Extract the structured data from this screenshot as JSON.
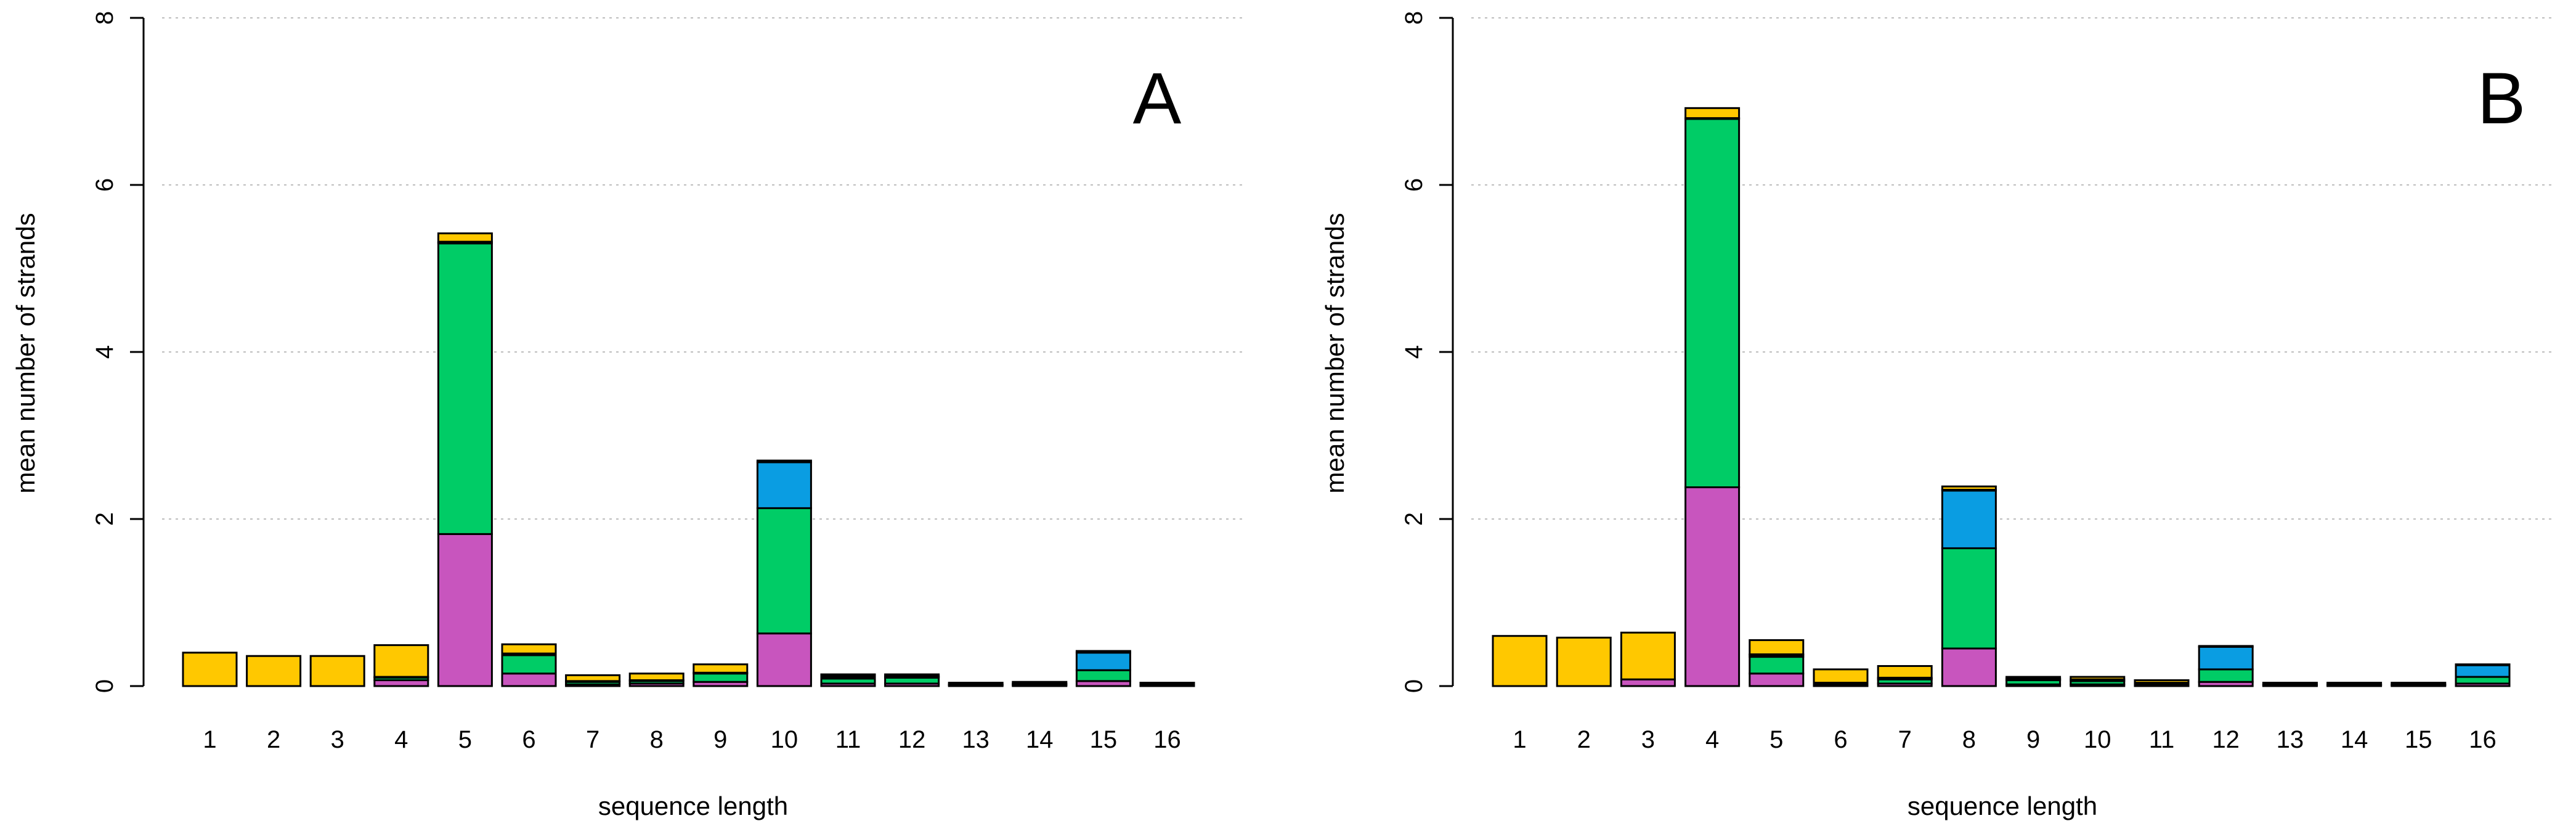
{
  "colors": {
    "pink": "#C855BE",
    "green": "#00CC66",
    "blue": "#0A9DE2",
    "yellow": "#FFC800",
    "black": "#1A1A1A"
  },
  "chart_data": [
    {
      "type": "bar",
      "stacked": true,
      "panel_label": "A",
      "xlabel": "sequence length",
      "ylabel": "mean number of strands",
      "ylim": [
        0,
        8
      ],
      "yticks": [
        "0",
        "2",
        "4",
        "6",
        "8"
      ],
      "grid": "horizontal dotted",
      "categories": [
        "1",
        "2",
        "3",
        "4",
        "5",
        "6",
        "7",
        "8",
        "9",
        "10",
        "11",
        "12",
        "13",
        "14",
        "15",
        "16"
      ],
      "series": [
        {
          "name": "pink",
          "color": "#C855BE",
          "values": [
            0,
            0,
            0,
            0.07,
            1.82,
            0.15,
            0.02,
            0.03,
            0.05,
            0.63,
            0.03,
            0.03,
            0.01,
            0.01,
            0.06,
            0.01
          ]
        },
        {
          "name": "green",
          "color": "#00CC66",
          "values": [
            0,
            0,
            0,
            0.03,
            3.48,
            0.22,
            0.03,
            0.03,
            0.1,
            1.5,
            0.06,
            0.07,
            0.01,
            0.01,
            0.13,
            0.01
          ]
        },
        {
          "name": "blue",
          "color": "#0A9DE2",
          "values": [
            0,
            0,
            0,
            0,
            0.01,
            0.01,
            0,
            0,
            0,
            0.55,
            0.02,
            0.01,
            0,
            0,
            0.21,
            0
          ]
        },
        {
          "name": "black",
          "color": "#1A1A1A",
          "values": [
            0,
            0,
            0,
            0.01,
            0.01,
            0.01,
            0.01,
            0.01,
            0.01,
            0.02,
            0.01,
            0.01,
            0.02,
            0.01,
            0.02,
            0.02
          ]
        },
        {
          "name": "yellow",
          "color": "#FFC800",
          "values": [
            0.4,
            0.36,
            0.36,
            0.38,
            0.1,
            0.11,
            0.07,
            0.08,
            0.1,
            0,
            0.02,
            0.02,
            0,
            0.02,
            0,
            0
          ]
        }
      ]
    },
    {
      "type": "bar",
      "stacked": true,
      "panel_label": "B",
      "xlabel": "sequence length",
      "ylabel": "mean number of strands",
      "ylim": [
        0,
        8
      ],
      "yticks": [
        "0",
        "2",
        "4",
        "6",
        "8"
      ],
      "grid": "horizontal dotted",
      "categories": [
        "1",
        "2",
        "3",
        "4",
        "5",
        "6",
        "7",
        "8",
        "9",
        "10",
        "11",
        "12",
        "13",
        "14",
        "15",
        "16"
      ],
      "series": [
        {
          "name": "pink",
          "color": "#C855BE",
          "values": [
            0,
            0,
            0.08,
            2.38,
            0.15,
            0.02,
            0.03,
            0.45,
            0.02,
            0.02,
            0.02,
            0.05,
            0.01,
            0.01,
            0.01,
            0.03
          ]
        },
        {
          "name": "green",
          "color": "#00CC66",
          "values": [
            0,
            0,
            0,
            4.41,
            0.2,
            0.01,
            0.05,
            1.2,
            0.05,
            0.04,
            0.01,
            0.15,
            0.01,
            0.01,
            0.01,
            0.08
          ]
        },
        {
          "name": "blue",
          "color": "#0A9DE2",
          "values": [
            0,
            0,
            0,
            0,
            0.02,
            0,
            0.01,
            0.69,
            0.01,
            0,
            0,
            0.27,
            0,
            0,
            0,
            0.14
          ]
        },
        {
          "name": "black",
          "color": "#1A1A1A",
          "values": [
            0,
            0,
            0,
            0.01,
            0.01,
            0.01,
            0.01,
            0.01,
            0.01,
            0.02,
            0.01,
            0.01,
            0.02,
            0.02,
            0.02,
            0.01
          ]
        },
        {
          "name": "yellow",
          "color": "#FFC800",
          "values": [
            0.6,
            0.58,
            0.56,
            0.12,
            0.17,
            0.16,
            0.14,
            0.04,
            0.02,
            0.03,
            0.03,
            0,
            0,
            0,
            0,
            0
          ]
        }
      ]
    }
  ]
}
